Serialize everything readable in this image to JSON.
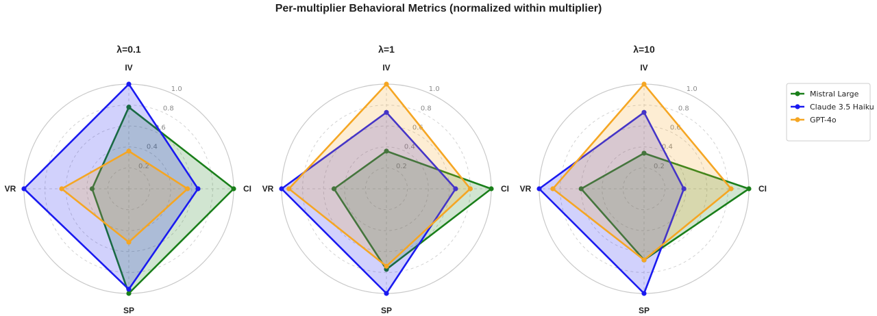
{
  "title": "Per-multiplier Behavioral Metrics (normalized within multiplier)",
  "chart_data": [
    {
      "type": "radar",
      "title": "λ=0.1",
      "axes": [
        "IV",
        "CI",
        "SP",
        "VR"
      ],
      "rlim": [
        0,
        1.0
      ],
      "rticks": [
        "0.2",
        "0.4",
        "0.6",
        "0.8",
        "1.0"
      ],
      "series": [
        {
          "name": "Mistral Large",
          "color": "#1a7f1a",
          "values": [
            0.78,
            1.0,
            1.0,
            0.35
          ]
        },
        {
          "name": "Claude 3.5 Haiku",
          "color": "#1a1af0",
          "values": [
            1.0,
            0.66,
            0.96,
            1.0
          ]
        },
        {
          "name": "GPT-4o",
          "color": "#f5a623",
          "values": [
            0.36,
            0.56,
            0.51,
            0.64
          ]
        }
      ]
    },
    {
      "type": "radar",
      "title": "λ=1",
      "axes": [
        "IV",
        "CI",
        "SP",
        "VR"
      ],
      "rlim": [
        0,
        1.0
      ],
      "rticks": [
        "0.2",
        "0.4",
        "0.6",
        "0.8",
        "1.0"
      ],
      "series": [
        {
          "name": "Mistral Large",
          "color": "#1a7f1a",
          "values": [
            0.36,
            1.0,
            0.77,
            0.5
          ]
        },
        {
          "name": "Claude 3.5 Haiku",
          "color": "#1a1af0",
          "values": [
            0.73,
            0.66,
            1.0,
            1.0
          ]
        },
        {
          "name": "GPT-4o",
          "color": "#f5a623",
          "values": [
            1.0,
            0.8,
            0.74,
            0.93
          ]
        }
      ]
    },
    {
      "type": "radar",
      "title": "λ=10",
      "axes": [
        "IV",
        "CI",
        "SP",
        "VR"
      ],
      "rlim": [
        0,
        1.0
      ],
      "rticks": [
        "0.2",
        "0.4",
        "0.6",
        "0.8",
        "1.0"
      ],
      "series": [
        {
          "name": "Mistral Large",
          "color": "#1a7f1a",
          "values": [
            0.34,
            1.0,
            0.68,
            0.6
          ]
        },
        {
          "name": "Claude 3.5 Haiku",
          "color": "#1a1af0",
          "values": [
            0.73,
            0.38,
            1.0,
            1.0
          ]
        },
        {
          "name": "GPT-4o",
          "color": "#f5a623",
          "values": [
            1.0,
            0.83,
            0.68,
            0.87
          ]
        }
      ]
    }
  ],
  "legend": {
    "placement": "right",
    "entries": [
      "Mistral Large",
      "Claude 3.5 Haiku",
      "GPT-4o"
    ]
  }
}
